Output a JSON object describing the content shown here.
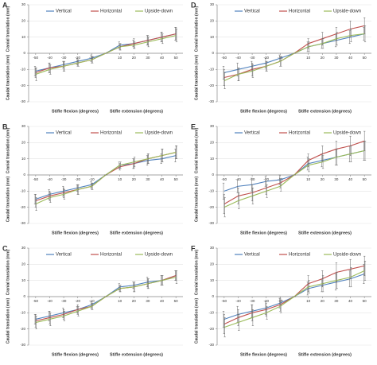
{
  "chart_data": [
    {
      "type": "line",
      "panel_label": "A",
      "ylabel_upper": "Cranial translation (mm)",
      "ylabel_lower": "Caudal translation (mm)",
      "xlabel_left": "Stifle flexion (degrees)",
      "xlabel_right": "Stifle extension (degrees)",
      "x": [
        -50,
        -40,
        -30,
        -20,
        -10,
        0,
        10,
        20,
        30,
        40,
        50
      ],
      "xlim": [
        -55,
        55
      ],
      "xticks": [
        -50,
        -40,
        -30,
        -20,
        -10,
        10,
        20,
        30,
        40,
        50
      ],
      "ylim": [
        -30,
        30
      ],
      "yticks": [
        -30,
        -20,
        -10,
        0,
        10,
        20,
        30
      ],
      "grid": true,
      "series": [
        {
          "name": "Vertical",
          "color": "#4f81bd",
          "values": [
            -11,
            -9,
            -7,
            -5,
            -3,
            0,
            5,
            6,
            8,
            10,
            12
          ],
          "errors": [
            3,
            3,
            2,
            2,
            2,
            0,
            2,
            2,
            3,
            3,
            4
          ]
        },
        {
          "name": "Horizontal",
          "color": "#c0504d",
          "values": [
            -12,
            -9,
            -8,
            -6,
            -4,
            0,
            4,
            6,
            8,
            10,
            12
          ],
          "errors": [
            3,
            3,
            3,
            2,
            2,
            0,
            2,
            3,
            3,
            3,
            4
          ]
        },
        {
          "name": "Upside-down",
          "color": "#9bbb59",
          "values": [
            -13,
            -10,
            -8,
            -6,
            -4,
            0,
            4,
            5,
            7,
            9,
            11
          ],
          "errors": [
            4,
            3,
            3,
            2,
            2,
            0,
            2,
            2,
            3,
            3,
            4
          ]
        }
      ]
    },
    {
      "type": "line",
      "panel_label": "B",
      "ylabel_upper": "Cranial translation (mm)",
      "ylabel_lower": "Caudal translation (mm)",
      "xlabel_left": "Stifle flexion (degrees)",
      "xlabel_right": "Stifle extension (degrees)",
      "x": [
        -50,
        -40,
        -30,
        -20,
        -10,
        0,
        10,
        20,
        30,
        40,
        50
      ],
      "xlim": [
        -55,
        55
      ],
      "xticks": [
        -50,
        -40,
        -30,
        -20,
        -10,
        10,
        20,
        30,
        40,
        50
      ],
      "ylim": [
        -30,
        30
      ],
      "yticks": [
        -30,
        -20,
        -10,
        0,
        10,
        20,
        30
      ],
      "grid": true,
      "series": [
        {
          "name": "Vertical",
          "color": "#4f81bd",
          "values": [
            -15,
            -12,
            -10,
            -8,
            -6,
            0,
            6,
            7,
            9,
            10,
            12
          ],
          "errors": [
            3,
            3,
            3,
            2,
            2,
            0,
            2,
            3,
            3,
            3,
            4
          ]
        },
        {
          "name": "Horizontal",
          "color": "#c0504d",
          "values": [
            -16,
            -13,
            -11,
            -9,
            -7,
            0,
            5,
            7,
            10,
            12,
            14
          ],
          "errors": [
            4,
            3,
            3,
            3,
            2,
            0,
            2,
            3,
            3,
            4,
            4
          ]
        },
        {
          "name": "Upside-down",
          "color": "#9bbb59",
          "values": [
            -18,
            -14,
            -12,
            -9,
            -7,
            0,
            6,
            8,
            10,
            12,
            14
          ],
          "errors": [
            4,
            3,
            3,
            3,
            2,
            0,
            2,
            3,
            3,
            4,
            4
          ]
        }
      ]
    },
    {
      "type": "line",
      "panel_label": "C",
      "ylabel_upper": "Cranial translation (mm)",
      "ylabel_lower": "Caudal translation (mm)",
      "xlabel_left": "Stifle flexion (degrees)",
      "xlabel_right": "Stifle extension (degrees)",
      "x": [
        -50,
        -40,
        -30,
        -20,
        -10,
        0,
        10,
        20,
        30,
        40,
        50
      ],
      "xlim": [
        -55,
        55
      ],
      "xticks": [
        -50,
        -40,
        -30,
        -20,
        -10,
        10,
        20,
        30,
        40,
        50
      ],
      "ylim": [
        -30,
        30
      ],
      "yticks": [
        -30,
        -20,
        -10,
        0,
        10,
        20,
        30
      ],
      "grid": true,
      "series": [
        {
          "name": "Vertical",
          "color": "#4f81bd",
          "values": [
            -14,
            -12,
            -10,
            -8,
            -5,
            0,
            6,
            7,
            9,
            10,
            13
          ],
          "errors": [
            3,
            3,
            3,
            2,
            2,
            0,
            2,
            2,
            3,
            3,
            3
          ]
        },
        {
          "name": "Horizontal",
          "color": "#c0504d",
          "values": [
            -15,
            -13,
            -11,
            -8,
            -6,
            0,
            5,
            6,
            8,
            10,
            13
          ],
          "errors": [
            4,
            4,
            3,
            3,
            2,
            0,
            2,
            3,
            3,
            3,
            3
          ]
        },
        {
          "name": "Upside-down",
          "color": "#9bbb59",
          "values": [
            -16,
            -14,
            -12,
            -9,
            -6,
            0,
            5,
            6,
            8,
            10,
            12
          ],
          "errors": [
            4,
            4,
            3,
            3,
            2,
            0,
            2,
            3,
            3,
            3,
            4
          ]
        }
      ]
    },
    {
      "type": "line",
      "panel_label": "D",
      "ylabel_upper": "Cranial translation (mm)",
      "ylabel_lower": "Caudal translation (mm)",
      "xlabel_left": "Stifle flexion (degrees)",
      "xlabel_right": "Stifle extension (degrees)",
      "x": [
        -50,
        -40,
        -30,
        -20,
        -10,
        0,
        10,
        20,
        30,
        40,
        50
      ],
      "xlim": [
        -55,
        55
      ],
      "xticks": [
        -50,
        -40,
        -30,
        -20,
        -10,
        10,
        20,
        30,
        40,
        50
      ],
      "ylim": [
        -30,
        30
      ],
      "yticks": [
        -30,
        -20,
        -10,
        0,
        10,
        20,
        30
      ],
      "grid": true,
      "series": [
        {
          "name": "Vertical",
          "color": "#4f81bd",
          "values": [
            -12,
            -10,
            -8,
            -6,
            -3,
            0,
            4,
            6,
            8,
            10,
            12
          ],
          "errors": [
            4,
            4,
            3,
            3,
            2,
            0,
            3,
            3,
            4,
            4,
            4
          ]
        },
        {
          "name": "Horizontal",
          "color": "#c0504d",
          "values": [
            -15,
            -13,
            -10,
            -8,
            -5,
            0,
            6,
            9,
            12,
            15,
            17
          ],
          "errors": [
            5,
            4,
            4,
            3,
            3,
            0,
            3,
            4,
            4,
            5,
            5
          ]
        },
        {
          "name": "Upside-down",
          "color": "#9bbb59",
          "values": [
            -17,
            -13,
            -11,
            -8,
            -5,
            0,
            4,
            6,
            9,
            11,
            12
          ],
          "errors": [
            5,
            4,
            4,
            3,
            3,
            0,
            3,
            3,
            4,
            4,
            5
          ]
        }
      ]
    },
    {
      "type": "line",
      "panel_label": "E",
      "ylabel_upper": "Cranial translation (mm)",
      "ylabel_lower": "Caudal translation (mm)",
      "xlabel_left": "Stifle flexion (degrees)",
      "xlabel_right": "Stifle extension (degrees)",
      "x": [
        -50,
        -40,
        -30,
        -20,
        -10,
        0,
        10,
        20,
        30,
        40,
        50
      ],
      "xlim": [
        -55,
        55
      ],
      "xticks": [
        -50,
        -40,
        -30,
        -20,
        -10,
        10,
        20,
        30,
        40,
        50
      ],
      "ylim": [
        -30,
        30
      ],
      "yticks": [
        -30,
        -20,
        -10,
        0,
        10,
        20,
        30
      ],
      "grid": true,
      "series": [
        {
          "name": "Vertical",
          "color": "#4f81bd",
          "values": [
            -10,
            -7,
            -6,
            -4,
            -3,
            0,
            7,
            9,
            11,
            13,
            15
          ],
          "errors": [
            5,
            4,
            4,
            3,
            3,
            0,
            4,
            4,
            5,
            5,
            6
          ]
        },
        {
          "name": "Horizontal",
          "color": "#c0504d",
          "values": [
            -18,
            -13,
            -11,
            -8,
            -5,
            0,
            9,
            13,
            16,
            18,
            21
          ],
          "errors": [
            6,
            5,
            5,
            4,
            3,
            0,
            4,
            5,
            5,
            6,
            6
          ]
        },
        {
          "name": "Upside-down",
          "color": "#9bbb59",
          "values": [
            -20,
            -16,
            -13,
            -10,
            -7,
            0,
            6,
            8,
            11,
            13,
            15
          ],
          "errors": [
            6,
            5,
            5,
            4,
            3,
            0,
            4,
            4,
            5,
            5,
            6
          ]
        }
      ]
    },
    {
      "type": "line",
      "panel_label": "F",
      "ylabel_upper": "Cranial translation (mm)",
      "ylabel_lower": "Caudal translation (mm)",
      "xlabel_left": "Stifle flexion (degrees)",
      "xlabel_right": "Stifle extension (degrees)",
      "x": [
        -50,
        -40,
        -30,
        -20,
        -10,
        0,
        10,
        20,
        30,
        40,
        50
      ],
      "xlim": [
        -55,
        55
      ],
      "xticks": [
        -50,
        -40,
        -30,
        -20,
        -10,
        10,
        20,
        30,
        40,
        50
      ],
      "ylim": [
        -30,
        30
      ],
      "yticks": [
        -30,
        -20,
        -10,
        0,
        10,
        20,
        30
      ],
      "grid": true,
      "series": [
        {
          "name": "Vertical",
          "color": "#4f81bd",
          "values": [
            -14,
            -11,
            -9,
            -7,
            -4,
            0,
            5,
            7,
            9,
            11,
            14
          ],
          "errors": [
            5,
            5,
            4,
            4,
            3,
            0,
            4,
            4,
            5,
            5,
            6
          ]
        },
        {
          "name": "Horizontal",
          "color": "#c0504d",
          "values": [
            -17,
            -13,
            -10,
            -8,
            -5,
            0,
            8,
            11,
            15,
            17,
            19
          ],
          "errors": [
            6,
            5,
            5,
            4,
            4,
            0,
            5,
            5,
            6,
            6,
            6
          ]
        },
        {
          "name": "Upside-down",
          "color": "#9bbb59",
          "values": [
            -19,
            -16,
            -13,
            -10,
            -6,
            0,
            6,
            8,
            10,
            12,
            16
          ],
          "errors": [
            6,
            5,
            5,
            4,
            4,
            0,
            4,
            5,
            5,
            6,
            6
          ]
        }
      ]
    }
  ]
}
